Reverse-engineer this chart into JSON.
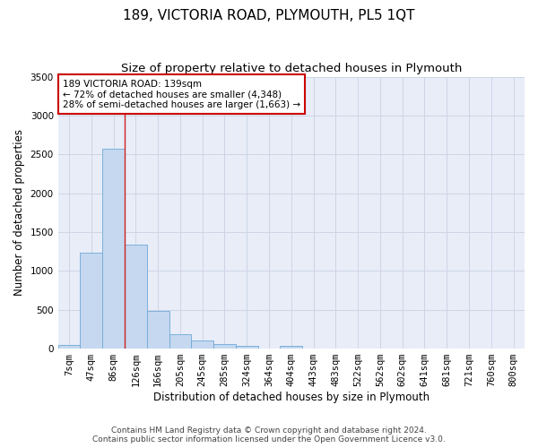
{
  "title": "189, VICTORIA ROAD, PLYMOUTH, PL5 1QT",
  "subtitle": "Size of property relative to detached houses in Plymouth",
  "xlabel": "Distribution of detached houses by size in Plymouth",
  "ylabel": "Number of detached properties",
  "bin_labels": [
    "7sqm",
    "47sqm",
    "86sqm",
    "126sqm",
    "166sqm",
    "205sqm",
    "245sqm",
    "285sqm",
    "324sqm",
    "364sqm",
    "404sqm",
    "443sqm",
    "483sqm",
    "522sqm",
    "562sqm",
    "602sqm",
    "641sqm",
    "681sqm",
    "721sqm",
    "760sqm",
    "800sqm"
  ],
  "bar_values": [
    50,
    1230,
    2570,
    1340,
    490,
    185,
    100,
    55,
    40,
    0,
    40,
    0,
    0,
    0,
    0,
    0,
    0,
    0,
    0,
    0,
    0
  ],
  "bar_color": "#c5d8ef",
  "bar_edge_color": "#6fa8d8",
  "grid_color": "#cdd5e5",
  "background_color": "#e8edf8",
  "red_line_x": 2.5,
  "annotation_text": "189 VICTORIA ROAD: 139sqm\n← 72% of detached houses are smaller (4,348)\n28% of semi-detached houses are larger (1,663) →",
  "annotation_box_color": "#ffffff",
  "annotation_edge_color": "#cc0000",
  "ylim": [
    0,
    3500
  ],
  "yticks": [
    0,
    500,
    1000,
    1500,
    2000,
    2500,
    3000,
    3500
  ],
  "footer_line1": "Contains HM Land Registry data © Crown copyright and database right 2024.",
  "footer_line2": "Contains public sector information licensed under the Open Government Licence v3.0.",
  "title_fontsize": 11,
  "subtitle_fontsize": 9.5,
  "axis_label_fontsize": 8.5,
  "tick_fontsize": 7.5,
  "annotation_fontsize": 7.5,
  "footer_fontsize": 6.5
}
